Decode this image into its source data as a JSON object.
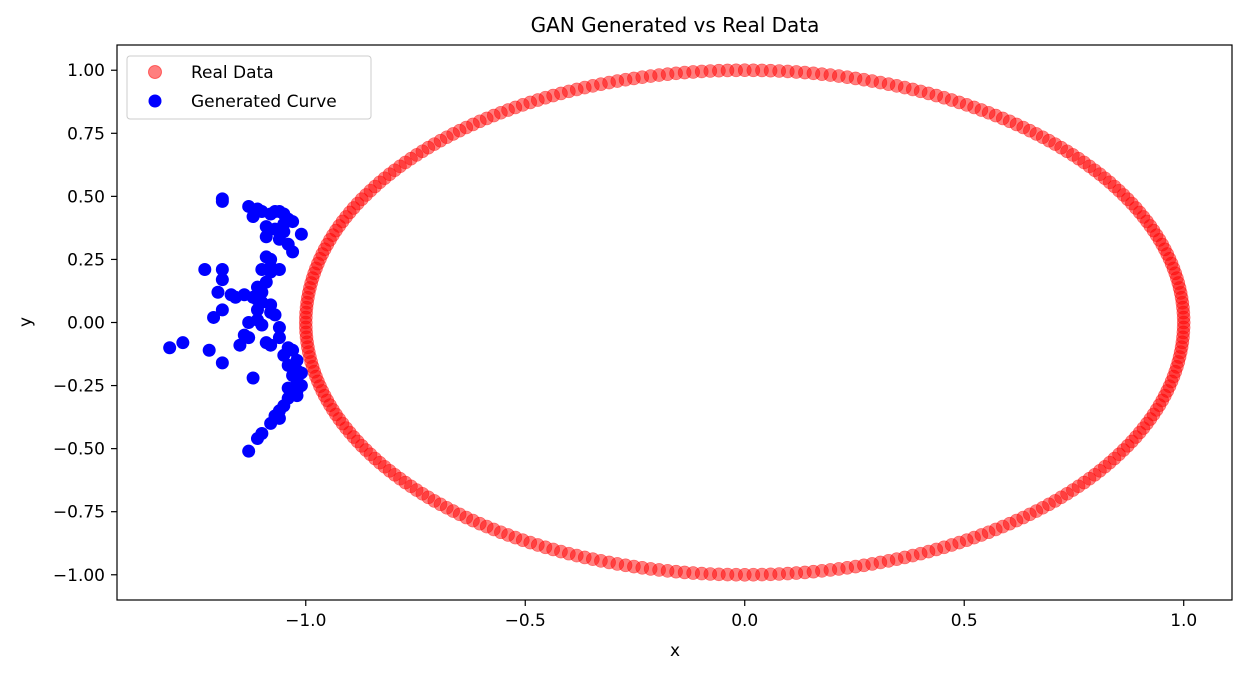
{
  "chart_data": {
    "type": "scatter",
    "title": "GAN Generated vs Real Data",
    "xlabel": "x",
    "ylabel": "y",
    "xlim": [
      -1.43,
      1.11
    ],
    "ylim": [
      -1.1,
      1.1
    ],
    "grid": false,
    "legend_position": "top-left",
    "x_ticks": [
      -1.0,
      -0.5,
      0.0,
      0.5,
      1.0
    ],
    "x_tick_labels": [
      "−1.0",
      "−0.5",
      "0.0",
      "0.5",
      "1.0"
    ],
    "y_ticks": [
      1.0,
      0.75,
      0.5,
      0.25,
      0.0,
      -0.25,
      -0.5,
      -0.75,
      -1.0
    ],
    "y_tick_labels": [
      "1.00",
      "0.75",
      "0.50",
      "0.25",
      "0.00",
      "−0.25",
      "−0.50",
      "−0.75",
      "−1.00"
    ],
    "series": [
      {
        "name": "Real Data",
        "color": "#ff0000",
        "alpha": 0.5,
        "shape": "ellipse",
        "center": [
          0.0,
          0.0
        ],
        "radius_x": 1.0,
        "radius_y": 1.0,
        "n_points": 320
      },
      {
        "name": "Generated Curve",
        "color": "#0000ff",
        "alpha": 1.0,
        "points": [
          [
            -1.19,
            0.49
          ],
          [
            -1.19,
            0.48
          ],
          [
            -1.13,
            0.46
          ],
          [
            -1.11,
            0.45
          ],
          [
            -1.1,
            0.44
          ],
          [
            -1.12,
            0.42
          ],
          [
            -1.08,
            0.43
          ],
          [
            -1.07,
            0.44
          ],
          [
            -1.06,
            0.44
          ],
          [
            -1.05,
            0.43
          ],
          [
            -1.04,
            0.41
          ],
          [
            -1.03,
            0.4
          ],
          [
            -1.05,
            0.39
          ],
          [
            -1.09,
            0.38
          ],
          [
            -1.07,
            0.37
          ],
          [
            -1.05,
            0.36
          ],
          [
            -1.01,
            0.35
          ],
          [
            -1.09,
            0.34
          ],
          [
            -1.06,
            0.33
          ],
          [
            -1.04,
            0.31
          ],
          [
            -1.03,
            0.28
          ],
          [
            -1.09,
            0.26
          ],
          [
            -1.08,
            0.25
          ],
          [
            -1.23,
            0.21
          ],
          [
            -1.19,
            0.21
          ],
          [
            -1.1,
            0.21
          ],
          [
            -1.08,
            0.2
          ],
          [
            -1.06,
            0.21
          ],
          [
            -1.08,
            0.22
          ],
          [
            -1.19,
            0.17
          ],
          [
            -1.09,
            0.16
          ],
          [
            -1.11,
            0.14
          ],
          [
            -1.1,
            0.12
          ],
          [
            -1.2,
            0.12
          ],
          [
            -1.17,
            0.11
          ],
          [
            -1.14,
            0.11
          ],
          [
            -1.16,
            0.1
          ],
          [
            -1.12,
            0.1
          ],
          [
            -1.11,
            0.09
          ],
          [
            -1.1,
            0.08
          ],
          [
            -1.08,
            0.07
          ],
          [
            -1.19,
            0.05
          ],
          [
            -1.11,
            0.05
          ],
          [
            -1.08,
            0.04
          ],
          [
            -1.07,
            0.03
          ],
          [
            -1.21,
            0.02
          ],
          [
            -1.11,
            0.01
          ],
          [
            -1.13,
            0.0
          ],
          [
            -1.1,
            -0.01
          ],
          [
            -1.06,
            -0.02
          ],
          [
            -1.14,
            -0.05
          ],
          [
            -1.13,
            -0.06
          ],
          [
            -1.06,
            -0.06
          ],
          [
            -1.28,
            -0.08
          ],
          [
            -1.09,
            -0.08
          ],
          [
            -1.08,
            -0.09
          ],
          [
            -1.15,
            -0.09
          ],
          [
            -1.31,
            -0.1
          ],
          [
            -1.04,
            -0.1
          ],
          [
            -1.03,
            -0.11
          ],
          [
            -1.22,
            -0.11
          ],
          [
            -1.05,
            -0.13
          ],
          [
            -1.02,
            -0.15
          ],
          [
            -1.19,
            -0.16
          ],
          [
            -1.04,
            -0.17
          ],
          [
            -1.02,
            -0.19
          ],
          [
            -1.01,
            -0.2
          ],
          [
            -1.03,
            -0.21
          ],
          [
            -1.12,
            -0.22
          ],
          [
            -1.02,
            -0.23
          ],
          [
            -1.01,
            -0.25
          ],
          [
            -1.04,
            -0.26
          ],
          [
            -1.02,
            -0.27
          ],
          [
            -1.02,
            -0.29
          ],
          [
            -1.04,
            -0.3
          ],
          [
            -1.05,
            -0.33
          ],
          [
            -1.06,
            -0.35
          ],
          [
            -1.07,
            -0.37
          ],
          [
            -1.06,
            -0.38
          ],
          [
            -1.08,
            -0.4
          ],
          [
            -1.1,
            -0.44
          ],
          [
            -1.11,
            -0.46
          ],
          [
            -1.13,
            -0.51
          ]
        ]
      }
    ]
  }
}
